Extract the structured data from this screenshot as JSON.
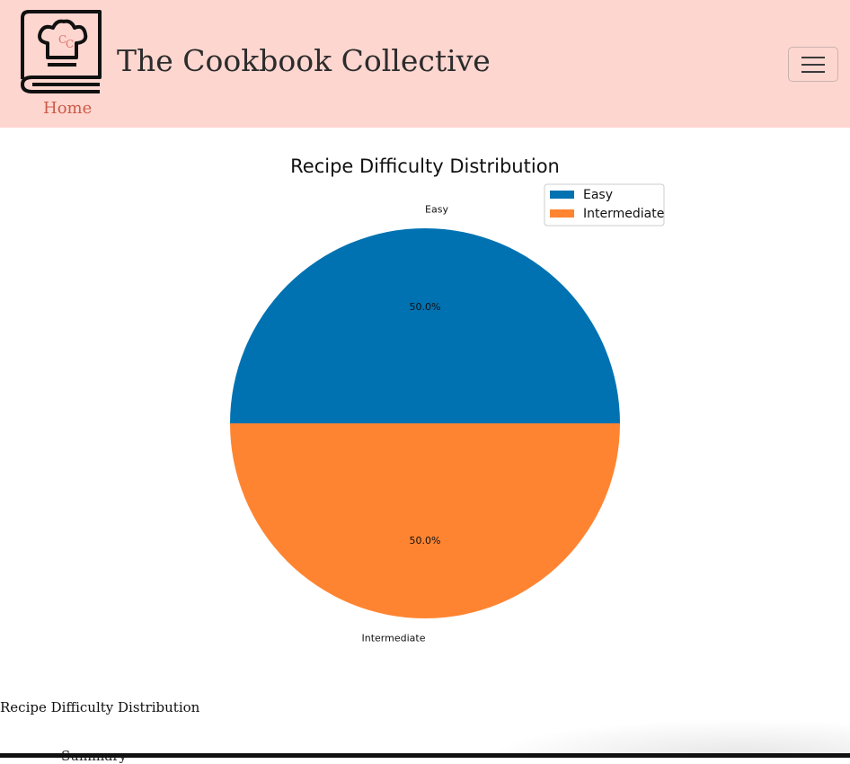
{
  "navbar": {
    "logo_text": "CC",
    "home_link": "Home",
    "title": "The Cookbook Collective",
    "toggler_icon": "hamburger-menu-icon"
  },
  "colors": {
    "navbar_bg": "#fed6d0",
    "home_link": "#cc5a48",
    "easy": "#0072b2",
    "intermediate": "#ff8431"
  },
  "chart_data": {
    "type": "pie",
    "title": "Recipe Difficulty Distribution",
    "categories": [
      "Easy",
      "Intermediate"
    ],
    "values": [
      50.0,
      50.0
    ],
    "autopct_labels": [
      "50.0%",
      "50.0%"
    ],
    "colors": [
      "#0072b2",
      "#ff8431"
    ],
    "legend": {
      "entries": [
        "Easy",
        "Intermediate"
      ],
      "placement": "top-right"
    },
    "start_angle_deg": 0
  },
  "caption": "Recipe Difficulty Distribution",
  "peek_text": "Summary"
}
